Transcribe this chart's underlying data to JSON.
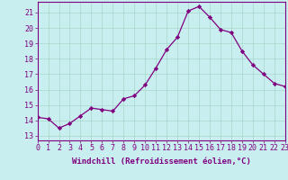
{
  "x": [
    0,
    1,
    2,
    3,
    4,
    5,
    6,
    7,
    8,
    9,
    10,
    11,
    12,
    13,
    14,
    15,
    16,
    17,
    18,
    19,
    20,
    21,
    22,
    23
  ],
  "y": [
    14.2,
    14.1,
    13.5,
    13.8,
    14.3,
    14.8,
    14.7,
    14.6,
    15.4,
    15.6,
    16.3,
    17.4,
    18.6,
    19.4,
    21.1,
    21.4,
    20.7,
    19.9,
    19.7,
    18.5,
    17.6,
    17.0,
    16.4,
    16.2
  ],
  "line_color": "#800080",
  "marker": "D",
  "markersize": 2.2,
  "linewidth": 0.9,
  "bg_color": "#c8eef0",
  "grid_color": "#a8d8c8",
  "xlabel": "Windchill (Refroidissement éolien,°C)",
  "yticks": [
    13,
    14,
    15,
    16,
    17,
    18,
    19,
    20,
    21
  ],
  "xticks": [
    0,
    1,
    2,
    3,
    4,
    5,
    6,
    7,
    8,
    9,
    10,
    11,
    12,
    13,
    14,
    15,
    16,
    17,
    18,
    19,
    20,
    21,
    22,
    23
  ],
  "xlim": [
    0,
    23
  ],
  "ylim": [
    12.7,
    21.7
  ],
  "xlabel_fontsize": 6.5,
  "tick_fontsize": 6.0,
  "tick_color": "#800080",
  "spine_color": "#800080"
}
